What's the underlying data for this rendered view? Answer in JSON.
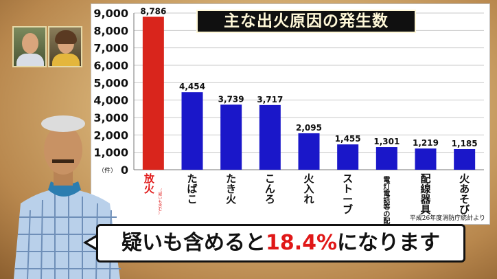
{
  "caption": {
    "pre": "疑いも含めると",
    "highlight": "18.4%",
    "post": "になります"
  },
  "source": "平成26年度消防庁統計より",
  "colors": {
    "highlight_bar": "#d9251c",
    "bar": "#1a17c9",
    "highlight_text": "#e01818"
  },
  "chart_data": {
    "type": "bar",
    "title": "主な出火原因の発生数",
    "ylabel": "（件）",
    "ylim": [
      0,
      9000
    ],
    "yticks": [
      "0",
      "1,000",
      "2,000",
      "3,000",
      "4,000",
      "5,000",
      "6,000",
      "7,000",
      "8,000",
      "9,000"
    ],
    "grid": true,
    "categories": [
      {
        "label": "放火",
        "note": "（疑いも含む）"
      },
      {
        "label": "たばこ",
        "note": ""
      },
      {
        "label": "たき火",
        "note": ""
      },
      {
        "label": "こんろ",
        "note": ""
      },
      {
        "label": "火入れ",
        "note": ""
      },
      {
        "label": "ストーブ",
        "note": ""
      },
      {
        "label": "電灯電話等の配線",
        "note": ""
      },
      {
        "label": "配線器具",
        "note": ""
      },
      {
        "label": "火あそび",
        "note": ""
      }
    ],
    "values": [
      8786,
      4454,
      3739,
      3717,
      2095,
      1455,
      1301,
      1219,
      1185
    ],
    "value_labels": [
      "8,786",
      "4,454",
      "3,739",
      "3,717",
      "2,095",
      "1,455",
      "1,301",
      "1,219",
      "1,185"
    ],
    "highlight_index": 0
  }
}
